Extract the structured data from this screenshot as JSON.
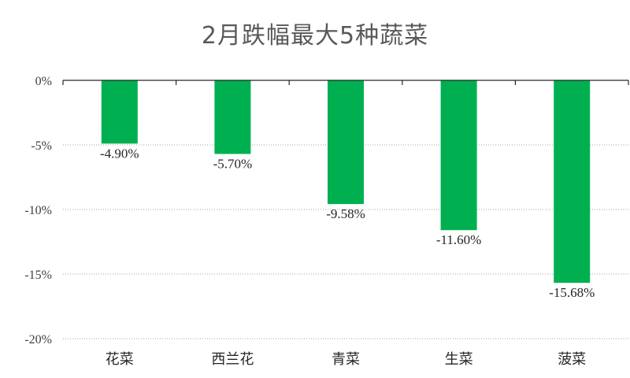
{
  "chart_data": {
    "type": "bar",
    "title": "2月跌幅最大5种蔬菜",
    "categories": [
      "花菜",
      "西兰花",
      "青菜",
      "生菜",
      "菠菜"
    ],
    "values": [
      -4.9,
      -5.7,
      -9.58,
      -11.6,
      -15.68
    ],
    "data_labels": [
      "-4.90%",
      "-5.70%",
      "-9.58%",
      "-11.60%",
      "-15.68%"
    ],
    "y_ticks": [
      0,
      -5,
      -10,
      -15,
      -20
    ],
    "y_tick_labels": [
      "0%",
      "-5%",
      "-10%",
      "-15%",
      "-20%"
    ],
    "ylim": [
      -20,
      0
    ],
    "xlabel": "",
    "ylabel": "",
    "grid": true,
    "bar_color": "#00b050",
    "grid_color": "#a6a6a6",
    "axis_color": "#262626"
  }
}
